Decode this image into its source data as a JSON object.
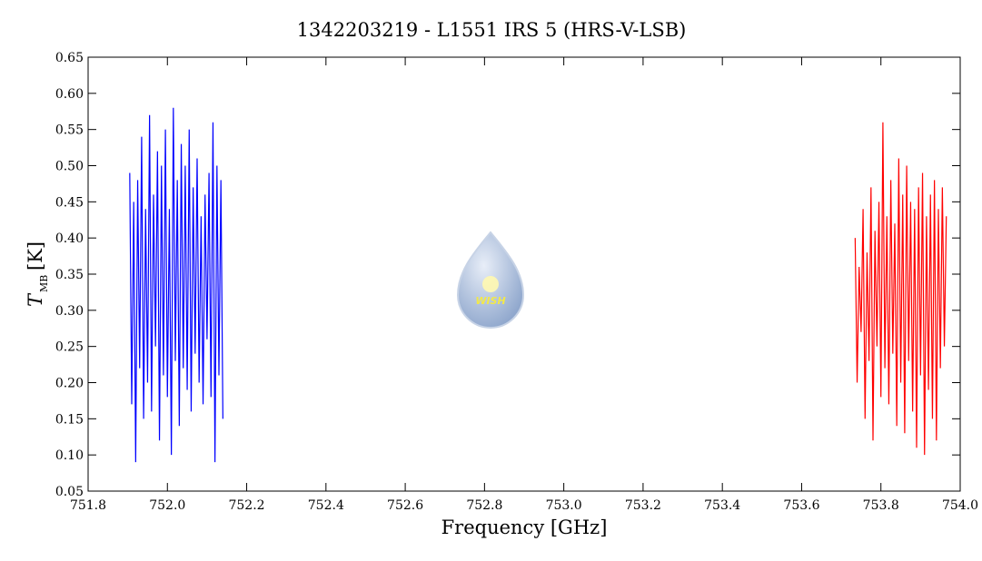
{
  "chart_data": {
    "type": "line",
    "title": "1342203219 - L1551 IRS 5 (HRS-V-LSB)",
    "xlabel": "Frequency [GHz]",
    "ylabel": "T",
    "ylabel_sub": "MB",
    "ylabel_unit": "[K]",
    "logo_text": "WISH",
    "xlim": [
      751.8,
      754.0
    ],
    "xticks": [
      {
        "value": 751.8,
        "label": "751.8"
      },
      {
        "value": 752,
        "label": "752.0"
      },
      752.2,
      752.4,
      752.6,
      752.8,
      {
        "value": 753,
        "label": "753.0"
      },
      753.2,
      753.4,
      753.6,
      753.8,
      {
        "value": 754,
        "label": "754.0"
      }
    ],
    "ylim": [
      0.05,
      0.65
    ],
    "yticks": [
      0.05,
      {
        "value": 0.1,
        "label": "0.10"
      },
      0.15,
      {
        "value": 0.2,
        "label": "0.20"
      },
      0.25,
      {
        "value": 0.3,
        "label": "0.30"
      },
      0.35,
      {
        "value": 0.4,
        "label": "0.40"
      },
      0.45,
      {
        "value": 0.5,
        "label": "0.50"
      },
      0.55,
      {
        "value": 0.6,
        "label": "0.60"
      },
      0.65
    ],
    "series": [
      {
        "color": "#0000ff",
        "x": [
          751.905,
          751.91,
          751.915,
          751.92,
          751.925,
          751.93,
          751.935,
          751.94,
          751.945,
          751.95,
          751.955,
          751.96,
          751.965,
          751.97,
          751.975,
          751.98,
          751.985,
          751.99,
          751.995,
          752,
          752.005,
          752.01,
          752.015,
          752.02,
          752.025,
          752.03,
          752.035,
          752.04,
          752.045,
          752.05,
          752.055,
          752.06,
          752.065,
          752.07,
          752.075,
          752.08,
          752.085,
          752.09,
          752.095,
          752.1,
          752.105,
          752.11,
          752.115,
          752.12,
          752.125,
          752.13,
          752.135,
          752.14
        ],
        "values": [
          0.49,
          0.17,
          0.45,
          0.09,
          0.48,
          0.22,
          0.54,
          0.15,
          0.44,
          0.2,
          0.57,
          0.16,
          0.46,
          0.25,
          0.52,
          0.12,
          0.5,
          0.21,
          0.55,
          0.18,
          0.44,
          0.1,
          0.58,
          0.23,
          0.48,
          0.14,
          0.53,
          0.22,
          0.5,
          0.19,
          0.55,
          0.16,
          0.47,
          0.24,
          0.51,
          0.2,
          0.43,
          0.17,
          0.46,
          0.26,
          0.49,
          0.18,
          0.56,
          0.09,
          0.5,
          0.21,
          0.48,
          0.15
        ]
      },
      {
        "color": "#ff0000",
        "x": [
          753.735,
          753.74,
          753.745,
          753.75,
          753.755,
          753.76,
          753.765,
          753.77,
          753.775,
          753.78,
          753.785,
          753.79,
          753.795,
          753.8,
          753.805,
          753.81,
          753.815,
          753.82,
          753.825,
          753.83,
          753.835,
          753.84,
          753.845,
          753.85,
          753.855,
          753.86,
          753.865,
          753.87,
          753.875,
          753.88,
          753.885,
          753.89,
          753.895,
          753.9,
          753.905,
          753.91,
          753.915,
          753.92,
          753.925,
          753.93,
          753.935,
          753.94,
          753.945,
          753.95,
          753.955,
          753.96,
          753.965
        ],
        "values": [
          0.4,
          0.2,
          0.36,
          0.27,
          0.44,
          0.15,
          0.38,
          0.23,
          0.47,
          0.12,
          0.41,
          0.25,
          0.45,
          0.18,
          0.56,
          0.22,
          0.43,
          0.17,
          0.48,
          0.24,
          0.42,
          0.14,
          0.51,
          0.2,
          0.46,
          0.13,
          0.5,
          0.23,
          0.45,
          0.16,
          0.44,
          0.11,
          0.47,
          0.21,
          0.49,
          0.1,
          0.43,
          0.19,
          0.46,
          0.15,
          0.48,
          0.12,
          0.44,
          0.22,
          0.47,
          0.25,
          0.43
        ]
      }
    ]
  }
}
